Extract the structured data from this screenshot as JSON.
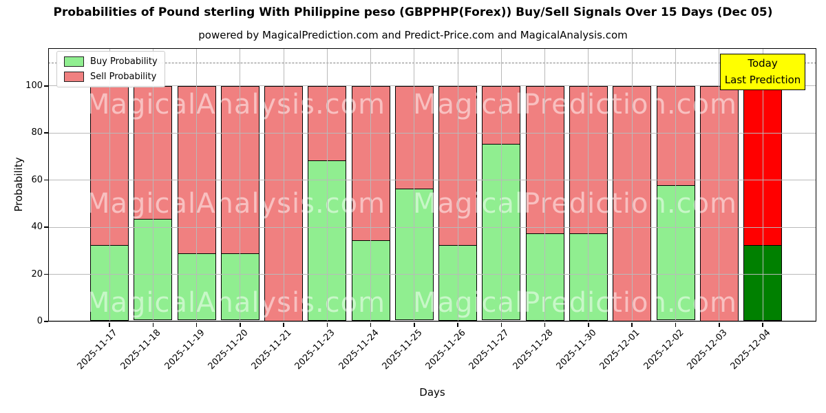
{
  "subtitle": "powered by MagicalPrediction.com and Predict-Price.com and MagicalAnalysis.com",
  "annotation": {
    "line1": "Today",
    "line2": "Last Prediction",
    "bg_color": "#ffff00",
    "border_color": "#000000"
  },
  "watermarks": {
    "left_text": "MagicalAnalysis.com",
    "right_text": "MagicalPrediction.com"
  },
  "chart_data": {
    "type": "bar",
    "stacked": true,
    "title": "Probabilities of Pound sterling With Philippine peso (GBPPHP(Forex)) Buy/Sell Signals Over 15 Days (Dec 05)",
    "xlabel": "Days",
    "ylabel": "Probability",
    "categories": [
      "2025-11-17",
      "2025-11-18",
      "2025-11-19",
      "2025-11-20",
      "2025-11-21",
      "2025-11-23",
      "2025-11-24",
      "2025-11-25",
      "2025-11-26",
      "2025-11-27",
      "2025-11-28",
      "2025-11-30",
      "2025-12-01",
      "2025-12-02",
      "2025-12-03",
      "2025-12-04"
    ],
    "series": [
      {
        "name": "Buy Probability",
        "color": "#90ee90",
        "today_color": "#008000",
        "values": [
          32,
          43,
          28.5,
          28.5,
          0,
          68,
          34,
          56,
          32,
          75,
          37,
          37,
          0,
          57.5,
          0,
          32
        ]
      },
      {
        "name": "Sell Probability",
        "color": "#f08080",
        "today_color": "#ff0000",
        "values": [
          68,
          57,
          71.5,
          71.5,
          100,
          32,
          66,
          44,
          68,
          25,
          63,
          63,
          100,
          42.5,
          100,
          68
        ]
      }
    ],
    "today_index": 15,
    "ylim": [
      0,
      116
    ],
    "yticks": [
      0,
      20,
      40,
      60,
      80,
      100
    ],
    "dashed_line_y": 110,
    "grid": true,
    "legend_position": "upper-left",
    "bar_edge_color": "#000000",
    "grid_color": "#b9b9b9"
  }
}
